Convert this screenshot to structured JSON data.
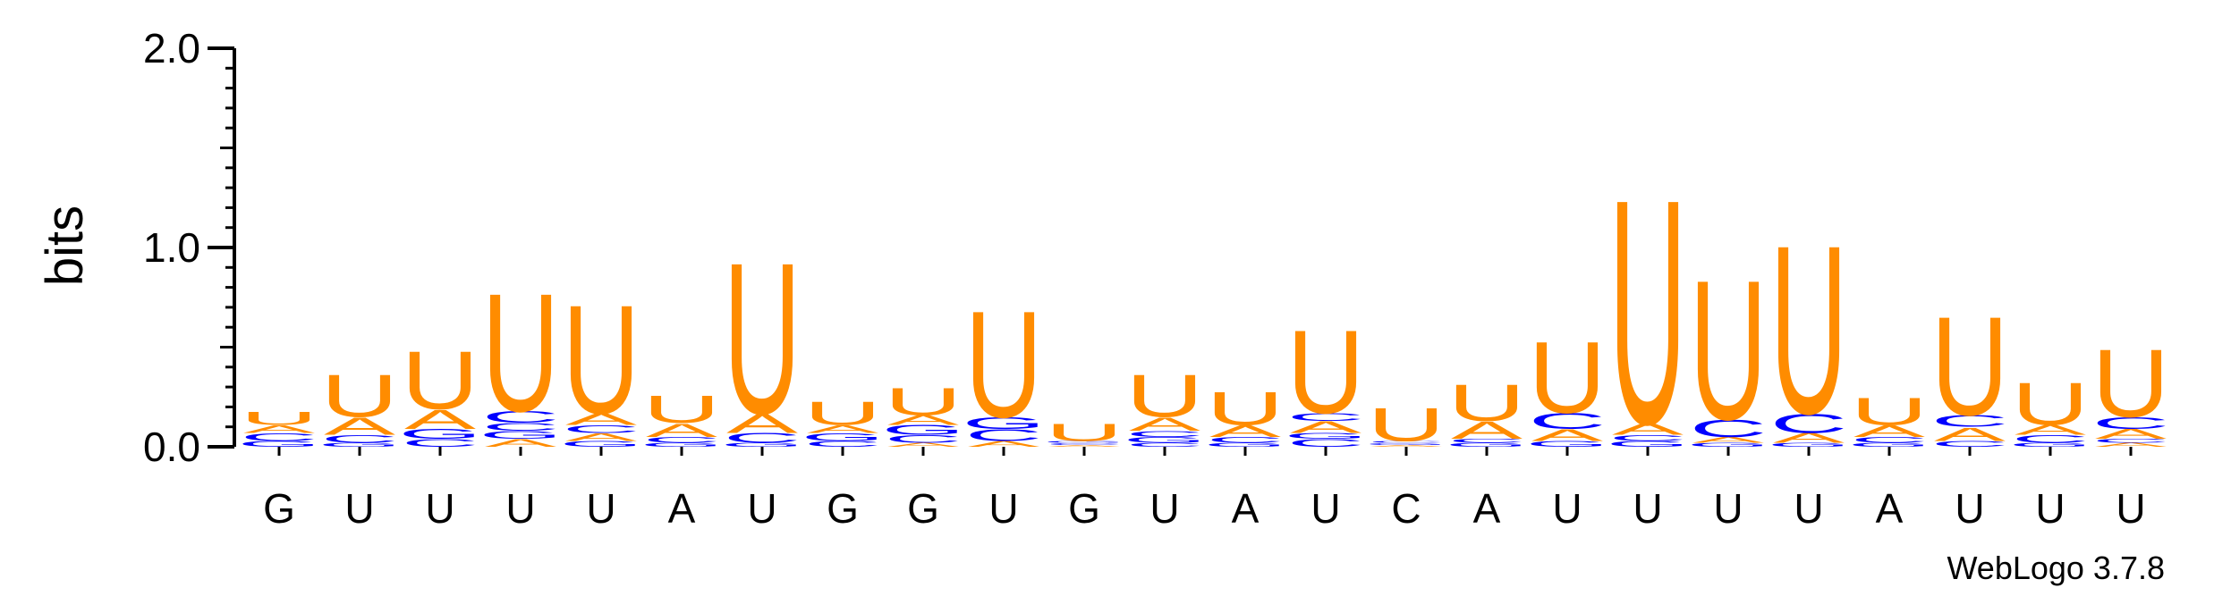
{
  "chart_data": {
    "type": "sequence-logo",
    "ylabel": "bits",
    "ylim": [
      0,
      2.0
    ],
    "yticks": [
      {
        "value": 0.0,
        "label": "0.0"
      },
      {
        "value": 1.0,
        "label": "1.0"
      },
      {
        "value": 2.0,
        "label": "2.0"
      }
    ],
    "colors": {
      "U": "#ff8c00",
      "A": "#ff8c00",
      "C": "#0000ff",
      "G": "#0000ff"
    },
    "sequence": [
      "G",
      "U",
      "U",
      "U",
      "U",
      "A",
      "U",
      "G",
      "G",
      "U",
      "G",
      "U",
      "A",
      "U",
      "C",
      "A",
      "U",
      "U",
      "U",
      "U",
      "A",
      "U",
      "U",
      "U"
    ],
    "positions": [
      {
        "label": "G",
        "stack": [
          {
            "letter": "G",
            "h": 0.03
          },
          {
            "letter": "C",
            "h": 0.04
          },
          {
            "letter": "A",
            "h": 0.04
          },
          {
            "letter": "U",
            "h": 0.07
          }
        ]
      },
      {
        "label": "U",
        "stack": [
          {
            "letter": "G",
            "h": 0.02
          },
          {
            "letter": "C",
            "h": 0.04
          },
          {
            "letter": "A",
            "h": 0.09
          },
          {
            "letter": "U",
            "h": 0.22
          }
        ]
      },
      {
        "label": "U",
        "stack": [
          {
            "letter": "C",
            "h": 0.04
          },
          {
            "letter": "G",
            "h": 0.05
          },
          {
            "letter": "A",
            "h": 0.1
          },
          {
            "letter": "U",
            "h": 0.3
          }
        ]
      },
      {
        "label": "U",
        "stack": [
          {
            "letter": "A",
            "h": 0.04
          },
          {
            "letter": "G",
            "h": 0.04
          },
          {
            "letter": "C",
            "h": 0.04
          },
          {
            "letter": "C",
            "h": 0.06
          },
          {
            "letter": "U",
            "h": 0.61
          }
        ]
      },
      {
        "label": "U",
        "stack": [
          {
            "letter": "G",
            "h": 0.03
          },
          {
            "letter": "A",
            "h": 0.04
          },
          {
            "letter": "C",
            "h": 0.04
          },
          {
            "letter": "A",
            "h": 0.06
          },
          {
            "letter": "U",
            "h": 0.56
          }
        ]
      },
      {
        "label": "A",
        "stack": [
          {
            "letter": "G",
            "h": 0.02
          },
          {
            "letter": "C",
            "h": 0.03
          },
          {
            "letter": "A",
            "h": 0.07
          },
          {
            "letter": "U",
            "h": 0.14
          }
        ]
      },
      {
        "label": "U",
        "stack": [
          {
            "letter": "G",
            "h": 0.02
          },
          {
            "letter": "C",
            "h": 0.05
          },
          {
            "letter": "A",
            "h": 0.1
          },
          {
            "letter": "U",
            "h": 0.78
          }
        ]
      },
      {
        "label": "G",
        "stack": [
          {
            "letter": "C",
            "h": 0.03
          },
          {
            "letter": "G",
            "h": 0.04
          },
          {
            "letter": "A",
            "h": 0.04
          },
          {
            "letter": "U",
            "h": 0.12
          }
        ]
      },
      {
        "label": "G",
        "stack": [
          {
            "letter": "A",
            "h": 0.02
          },
          {
            "letter": "C",
            "h": 0.04
          },
          {
            "letter": "G",
            "h": 0.05
          },
          {
            "letter": "A",
            "h": 0.05
          },
          {
            "letter": "U",
            "h": 0.14
          }
        ]
      },
      {
        "label": "U",
        "stack": [
          {
            "letter": "A",
            "h": 0.03
          },
          {
            "letter": "C",
            "h": 0.06
          },
          {
            "letter": "G",
            "h": 0.06
          },
          {
            "letter": "U",
            "h": 0.55
          }
        ]
      },
      {
        "label": "G",
        "stack": [
          {
            "letter": "A",
            "h": 0.01
          },
          {
            "letter": "C",
            "h": 0.01
          },
          {
            "letter": "G",
            "h": 0.01
          },
          {
            "letter": "U",
            "h": 0.09
          }
        ]
      },
      {
        "label": "U",
        "stack": [
          {
            "letter": "C",
            "h": 0.02
          },
          {
            "letter": "G",
            "h": 0.03
          },
          {
            "letter": "C",
            "h": 0.03
          },
          {
            "letter": "A",
            "h": 0.07
          },
          {
            "letter": "U",
            "h": 0.22
          }
        ]
      },
      {
        "label": "A",
        "stack": [
          {
            "letter": "G",
            "h": 0.02
          },
          {
            "letter": "C",
            "h": 0.03
          },
          {
            "letter": "A",
            "h": 0.06
          },
          {
            "letter": "U",
            "h": 0.17
          }
        ]
      },
      {
        "label": "U",
        "stack": [
          {
            "letter": "C",
            "h": 0.04
          },
          {
            "letter": "G",
            "h": 0.03
          },
          {
            "letter": "A",
            "h": 0.06
          },
          {
            "letter": "C",
            "h": 0.04
          },
          {
            "letter": "U",
            "h": 0.43
          }
        ]
      },
      {
        "label": "C",
        "stack": [
          {
            "letter": "A",
            "h": 0.01
          },
          {
            "letter": "G",
            "h": 0.01
          },
          {
            "letter": "C",
            "h": 0.01
          },
          {
            "letter": "U",
            "h": 0.17
          }
        ]
      },
      {
        "label": "A",
        "stack": [
          {
            "letter": "G",
            "h": 0.02
          },
          {
            "letter": "C",
            "h": 0.02
          },
          {
            "letter": "A",
            "h": 0.09
          },
          {
            "letter": "U",
            "h": 0.19
          }
        ]
      },
      {
        "label": "U",
        "stack": [
          {
            "letter": "G",
            "h": 0.03
          },
          {
            "letter": "A",
            "h": 0.06
          },
          {
            "letter": "C",
            "h": 0.08
          },
          {
            "letter": "U",
            "h": 0.37
          }
        ]
      },
      {
        "label": "U",
        "stack": [
          {
            "letter": "G",
            "h": 0.03
          },
          {
            "letter": "C",
            "h": 0.03
          },
          {
            "letter": "A",
            "h": 0.06
          },
          {
            "letter": "U",
            "h": 1.16
          }
        ]
      },
      {
        "label": "U",
        "stack": [
          {
            "letter": "G",
            "h": 0.02
          },
          {
            "letter": "A",
            "h": 0.03
          },
          {
            "letter": "C",
            "h": 0.09
          },
          {
            "letter": "U",
            "h": 0.72
          }
        ]
      },
      {
        "label": "U",
        "stack": [
          {
            "letter": "G",
            "h": 0.02
          },
          {
            "letter": "A",
            "h": 0.05
          },
          {
            "letter": "C",
            "h": 0.1
          },
          {
            "letter": "U",
            "h": 0.87
          }
        ]
      },
      {
        "label": "A",
        "stack": [
          {
            "letter": "G",
            "h": 0.02
          },
          {
            "letter": "C",
            "h": 0.03
          },
          {
            "letter": "A",
            "h": 0.06
          },
          {
            "letter": "U",
            "h": 0.14
          }
        ]
      },
      {
        "label": "U",
        "stack": [
          {
            "letter": "C",
            "h": 0.03
          },
          {
            "letter": "A",
            "h": 0.07
          },
          {
            "letter": "C",
            "h": 0.06
          },
          {
            "letter": "U",
            "h": 0.51
          }
        ]
      },
      {
        "label": "U",
        "stack": [
          {
            "letter": "G",
            "h": 0.02
          },
          {
            "letter": "C",
            "h": 0.04
          },
          {
            "letter": "A",
            "h": 0.05
          },
          {
            "letter": "U",
            "h": 0.22
          }
        ]
      },
      {
        "label": "U",
        "stack": [
          {
            "letter": "A",
            "h": 0.02
          },
          {
            "letter": "C",
            "h": 0.02
          },
          {
            "letter": "A",
            "h": 0.05
          },
          {
            "letter": "C",
            "h": 0.06
          },
          {
            "letter": "U",
            "h": 0.35
          }
        ]
      }
    ]
  },
  "credit": "WebLogo 3.7.8"
}
